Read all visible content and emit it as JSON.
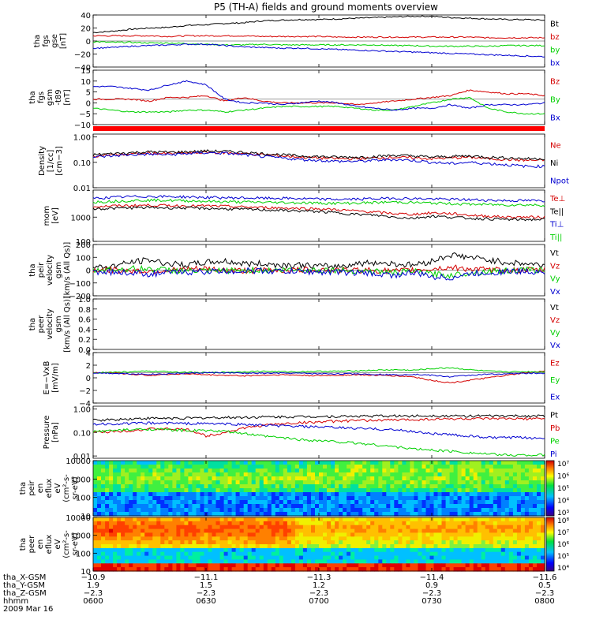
{
  "title": "P5 (TH-A) fields and ground moments overview",
  "colors": {
    "black": "#000000",
    "red": "#d40000",
    "green": "#00d000",
    "blue": "#0000d0",
    "status_bar": "#ff0000"
  },
  "chart_data": [
    {
      "id": "fgs-gse",
      "type": "line",
      "ylabel": [
        "tha",
        "fgs",
        "gse",
        "[nT]"
      ],
      "ylim": [
        -40,
        40
      ],
      "yticks": [
        "40",
        "20",
        "0",
        "−20",
        "−40"
      ],
      "series": [
        {
          "name": "Bt",
          "color": "black",
          "values": [
            13,
            15,
            18,
            20,
            21,
            24,
            25,
            27,
            28,
            31,
            32,
            33,
            33,
            34,
            35,
            36,
            37,
            38,
            38,
            36,
            35,
            34,
            33,
            33,
            32
          ]
        },
        {
          "name": "bz",
          "color": "red",
          "values": [
            8,
            8,
            8,
            8,
            7,
            8,
            8,
            8,
            8,
            7,
            7,
            7,
            7,
            6,
            6,
            6,
            6,
            6,
            6,
            6,
            6,
            5,
            5,
            5,
            5
          ]
        },
        {
          "name": "by",
          "color": "green",
          "values": [
            -1,
            -2,
            -2,
            -3,
            -3,
            -4,
            -5,
            -6,
            -6,
            -5,
            -6,
            -6,
            -6,
            -6,
            -6,
            -6,
            -7,
            -7,
            -8,
            -8,
            -8,
            -8,
            -7,
            -7,
            -7
          ]
        },
        {
          "name": "bx",
          "color": "blue",
          "values": [
            -11,
            -10,
            -8,
            -7,
            -6,
            -5,
            -5,
            -7,
            -9,
            -10,
            -11,
            -11,
            -12,
            -13,
            -14,
            -15,
            -16,
            -17,
            -18,
            -19,
            -20,
            -21,
            -22,
            -23,
            -24
          ]
        }
      ]
    },
    {
      "id": "fgs-gsm",
      "type": "line",
      "ylabel": [
        "tha",
        "fgs",
        "gsm",
        "-t89",
        "[nT]"
      ],
      "ylim": [
        -14,
        16
      ],
      "yticks": [
        "15",
        "10",
        "5",
        "0",
        "−5",
        "−10"
      ],
      "series": [
        {
          "name": "Bz",
          "color": "red",
          "values": [
            0,
            0,
            0,
            -1,
            1,
            1,
            2,
            -1,
            1,
            -1,
            -2,
            -2,
            -2,
            -2,
            -3,
            -2,
            -1,
            0,
            1,
            2,
            5,
            4,
            3,
            3,
            2
          ]
        },
        {
          "name": "By",
          "color": "green",
          "values": [
            -5,
            -6,
            -7,
            -7,
            -7,
            -6,
            -6,
            -7,
            -6,
            -5,
            -4,
            -4,
            -4,
            -4,
            -5,
            -6,
            -6,
            -4,
            -2,
            0,
            1,
            -5,
            -7,
            -8,
            -8
          ]
        },
        {
          "name": "Bx",
          "color": "blue",
          "values": [
            7,
            7,
            6,
            5,
            8,
            10,
            8,
            0,
            -2,
            -2,
            -3,
            -2,
            -1,
            -2,
            -4,
            -5,
            -6,
            -5,
            -5,
            -3,
            -5,
            -3,
            -3,
            -3,
            -2
          ]
        }
      ]
    },
    {
      "id": "density",
      "type": "line",
      "log": true,
      "ylabel": [
        "Density",
        "[1/cc]",
        "[cm−3]"
      ],
      "ylim": [
        0.01,
        1.3
      ],
      "yticks": [
        "1.00",
        "0.10",
        "0.01"
      ],
      "series": [
        {
          "name": "Ne",
          "color": "red",
          "values": [
            0.18,
            0.2,
            0.21,
            0.23,
            0.22,
            0.23,
            0.25,
            0.24,
            0.22,
            0.2,
            0.18,
            0.16,
            0.15,
            0.14,
            0.14,
            0.15,
            0.16,
            0.15,
            0.14,
            0.15,
            0.16,
            0.14,
            0.13,
            0.12,
            0.12
          ]
        },
        {
          "name": "Ni",
          "color": "black",
          "values": [
            0.2,
            0.22,
            0.24,
            0.26,
            0.25,
            0.26,
            0.28,
            0.27,
            0.25,
            0.22,
            0.2,
            0.18,
            0.17,
            0.16,
            0.16,
            0.17,
            0.19,
            0.18,
            0.16,
            0.17,
            0.18,
            0.16,
            0.15,
            0.14,
            0.14
          ]
        },
        {
          "name": "Npot",
          "color": "blue",
          "values": [
            0.16,
            0.18,
            0.2,
            0.21,
            0.2,
            0.22,
            0.24,
            0.23,
            0.2,
            0.17,
            0.15,
            0.13,
            0.12,
            0.11,
            0.11,
            0.12,
            0.13,
            0.12,
            0.1,
            0.09,
            0.1,
            0.09,
            0.08,
            0.07,
            0.07
          ]
        }
      ]
    },
    {
      "id": "temperature",
      "type": "line",
      "log": true,
      "ylabel": [
        "mom",
        "[eV]"
      ],
      "ylim": [
        100,
        13000
      ],
      "yticks": [
        "1000",
        "100"
      ],
      "series": [
        {
          "name": "Te⊥",
          "color": "red",
          "values": [
            2700,
            2900,
            3000,
            3100,
            3000,
            2900,
            2900,
            2800,
            2600,
            2500,
            2400,
            2300,
            2200,
            2000,
            1800,
            1600,
            1400,
            1300,
            1500,
            1400,
            1200,
            1100,
            1000,
            1000,
            1000
          ]
        },
        {
          "name": "Te||",
          "color": "black",
          "values": [
            2200,
            2300,
            2400,
            2500,
            2400,
            2400,
            2300,
            2200,
            2100,
            2000,
            1900,
            1800,
            1700,
            1500,
            1300,
            1200,
            1000,
            900,
            1100,
            1000,
            900,
            850,
            800,
            800,
            800
          ]
        },
        {
          "name": "Ti⊥",
          "color": "blue",
          "values": [
            6000,
            6500,
            7000,
            7200,
            7000,
            6800,
            6500,
            6300,
            6200,
            6000,
            6000,
            5800,
            5500,
            5400,
            5500,
            5800,
            6000,
            5800,
            5600,
            5400,
            5200,
            5000,
            4800,
            4800,
            4700
          ]
        },
        {
          "name": "Ti||",
          "color": "green",
          "values": [
            4200,
            4500,
            4800,
            5000,
            4900,
            4700,
            4500,
            4300,
            4200,
            4100,
            4000,
            3900,
            3800,
            3700,
            3800,
            4000,
            4200,
            4000,
            3800,
            3600,
            3400,
            3300,
            3200,
            3200,
            3100
          ]
        }
      ]
    },
    {
      "id": "peir-velocity",
      "type": "line",
      "ylabel": [
        "tha",
        "peir",
        "velocity",
        "gsm",
        "[km/s (All Qs)]"
      ],
      "ylim": [
        -200,
        200
      ],
      "yticks": [
        "200",
        "100",
        "0",
        "−100",
        "−200"
      ],
      "series": [
        {
          "name": "Vt",
          "color": "black",
          "values": [
            20,
            30,
            60,
            80,
            50,
            40,
            60,
            70,
            50,
            50,
            40,
            40,
            30,
            30,
            50,
            60,
            50,
            40,
            70,
            120,
            100,
            80,
            60,
            50,
            40
          ]
        },
        {
          "name": "Vz",
          "color": "red",
          "values": [
            0,
            0,
            -5,
            -10,
            0,
            5,
            10,
            0,
            -5,
            0,
            0,
            0,
            5,
            0,
            0,
            0,
            -10,
            0,
            10,
            20,
            10,
            0,
            0,
            0,
            0
          ]
        },
        {
          "name": "Vy",
          "color": "green",
          "values": [
            0,
            5,
            10,
            10,
            0,
            -5,
            -10,
            -5,
            0,
            0,
            0,
            5,
            0,
            0,
            -5,
            -10,
            -20,
            -10,
            -30,
            -40,
            -20,
            -10,
            -5,
            0,
            0
          ]
        },
        {
          "name": "Vx",
          "color": "blue",
          "values": [
            -10,
            -15,
            -20,
            -30,
            -20,
            -15,
            -10,
            -10,
            -5,
            -5,
            -10,
            -10,
            -15,
            -15,
            -20,
            -30,
            -40,
            -20,
            -50,
            -60,
            -30,
            -20,
            -10,
            -10,
            -10
          ]
        }
      ]
    },
    {
      "id": "peer-velocity",
      "type": "line",
      "ylabel": [
        "tha",
        "peer",
        "velocity",
        "gsm",
        "[km/s (All Qs)]"
      ],
      "ylim": [
        0,
        1
      ],
      "yticks": [
        "1.0",
        "0.8",
        "0.6",
        "0.4",
        "0.2",
        "0.0"
      ],
      "series": [
        {
          "name": "Vt",
          "color": "black",
          "values": []
        },
        {
          "name": "Vz",
          "color": "red",
          "values": []
        },
        {
          "name": "Vy",
          "color": "green",
          "values": []
        },
        {
          "name": "Vx",
          "color": "blue",
          "values": []
        }
      ]
    },
    {
      "id": "efield",
      "type": "line",
      "ylabel": [
        "E=−VxB",
        "[mV/m]"
      ],
      "ylim": [
        -6,
        4
      ],
      "yticks": [
        "4",
        "2",
        "0",
        "−2",
        "−4"
      ],
      "series": [
        {
          "name": "Ez",
          "color": "red",
          "values": [
            0,
            0,
            -0.3,
            -0.5,
            -0.3,
            -0.2,
            -0.4,
            -0.5,
            -0.6,
            -0.5,
            -0.4,
            -0.5,
            -0.6,
            -0.5,
            -0.4,
            -0.5,
            -0.6,
            -0.8,
            -1.5,
            -2,
            -1.5,
            -1,
            -0.5,
            0,
            0.3
          ]
        },
        {
          "name": "Ey",
          "color": "green",
          "values": [
            0,
            0.1,
            0.2,
            0.3,
            0.2,
            0.1,
            0,
            0.1,
            0.2,
            0.3,
            0.2,
            0.2,
            0.3,
            0.3,
            0.4,
            0.5,
            0.6,
            0.5,
            0.8,
            1,
            0.6,
            0.3,
            0.2,
            0.2,
            0.2
          ]
        },
        {
          "name": "Ex",
          "color": "blue",
          "values": [
            0,
            -0.1,
            -0.2,
            -0.3,
            -0.2,
            -0.1,
            0,
            0,
            -0.1,
            -0.1,
            -0.1,
            -0.1,
            -0.2,
            -0.2,
            -0.2,
            -0.3,
            -0.4,
            -0.3,
            -0.5,
            -0.8,
            -0.5,
            -0.3,
            -0.2,
            -0.1,
            -0.1
          ]
        }
      ]
    },
    {
      "id": "pressure",
      "type": "line",
      "log": true,
      "ylabel": [
        "Pressure",
        "[nPa]"
      ],
      "ylim": [
        0.008,
        1.3
      ],
      "yticks": [
        "1.00",
        "0.10",
        "0.01"
      ],
      "series": [
        {
          "name": "Pt",
          "color": "black",
          "values": [
            0.33,
            0.35,
            0.38,
            0.4,
            0.4,
            0.4,
            0.42,
            0.43,
            0.44,
            0.45,
            0.46,
            0.47,
            0.48,
            0.48,
            0.49,
            0.5,
            0.5,
            0.5,
            0.52,
            0.5,
            0.5,
            0.5,
            0.5,
            0.5,
            0.5
          ]
        },
        {
          "name": "Pb",
          "color": "red",
          "values": [
            0.1,
            0.11,
            0.12,
            0.14,
            0.14,
            0.13,
            0.07,
            0.1,
            0.15,
            0.2,
            0.23,
            0.26,
            0.28,
            0.3,
            0.32,
            0.33,
            0.34,
            0.35,
            0.37,
            0.38,
            0.38,
            0.38,
            0.38,
            0.38,
            0.38
          ]
        },
        {
          "name": "Pe",
          "color": "green",
          "values": [
            0.11,
            0.12,
            0.13,
            0.14,
            0.13,
            0.12,
            0.12,
            0.11,
            0.09,
            0.07,
            0.06,
            0.05,
            0.045,
            0.04,
            0.035,
            0.03,
            0.025,
            0.02,
            0.018,
            0.016,
            0.014,
            0.012,
            0.011,
            0.011,
            0.011
          ]
        },
        {
          "name": "Pi",
          "color": "blue",
          "values": [
            0.22,
            0.23,
            0.24,
            0.25,
            0.25,
            0.24,
            0.24,
            0.23,
            0.22,
            0.2,
            0.19,
            0.18,
            0.17,
            0.16,
            0.15,
            0.14,
            0.13,
            0.11,
            0.09,
            0.08,
            0.07,
            0.06,
            0.06,
            0.06,
            0.055
          ]
        }
      ]
    },
    {
      "id": "peir-spectrogram",
      "type": "heatmap",
      "ylabel": [
        "tha",
        "peir",
        "en",
        "eflux",
        "eV",
        "(cm²-s-",
        "sr-eV)"
      ],
      "ylim": [
        10,
        20000
      ],
      "yticks": [
        "10000",
        "1000",
        "100",
        "10"
      ],
      "colorbar": [
        "10⁷",
        "10⁶",
        "10⁵",
        "10⁴",
        "10³"
      ],
      "colorbar_range": [
        1000,
        10000000
      ]
    },
    {
      "id": "peer-spectrogram",
      "type": "heatmap",
      "ylabel": [
        "tha",
        "peer",
        "en",
        "eflux",
        "eV",
        "(cm²-s-",
        "sr-eV)"
      ],
      "ylim": [
        10,
        20000
      ],
      "yticks": [
        "10000",
        "1000",
        "100",
        "10"
      ],
      "colorbar": [
        "10⁸",
        "10⁷",
        "10⁶",
        "10⁵",
        "10⁴"
      ],
      "colorbar_range": [
        10000,
        100000000
      ]
    }
  ],
  "x_axis": {
    "row_labels": [
      "tha_X-GSM",
      "tha_Y-GSM",
      "tha_Z-GSM",
      "hhmm",
      "2009 Mar 16"
    ],
    "ticks": [
      {
        "x": [
          "−10.9",
          "1.9",
          "−2.3",
          "0600"
        ]
      },
      {
        "x": [
          "−11.1",
          "1.5",
          "−2.3",
          "0630"
        ]
      },
      {
        "x": [
          "−11.3",
          "1.2",
          "−2.3",
          "0700"
        ]
      },
      {
        "x": [
          "−11.4",
          "0.9",
          "−2.3",
          "0730"
        ]
      },
      {
        "x": [
          "−11.6",
          "0.5",
          "−2.3",
          "0800"
        ]
      }
    ]
  }
}
